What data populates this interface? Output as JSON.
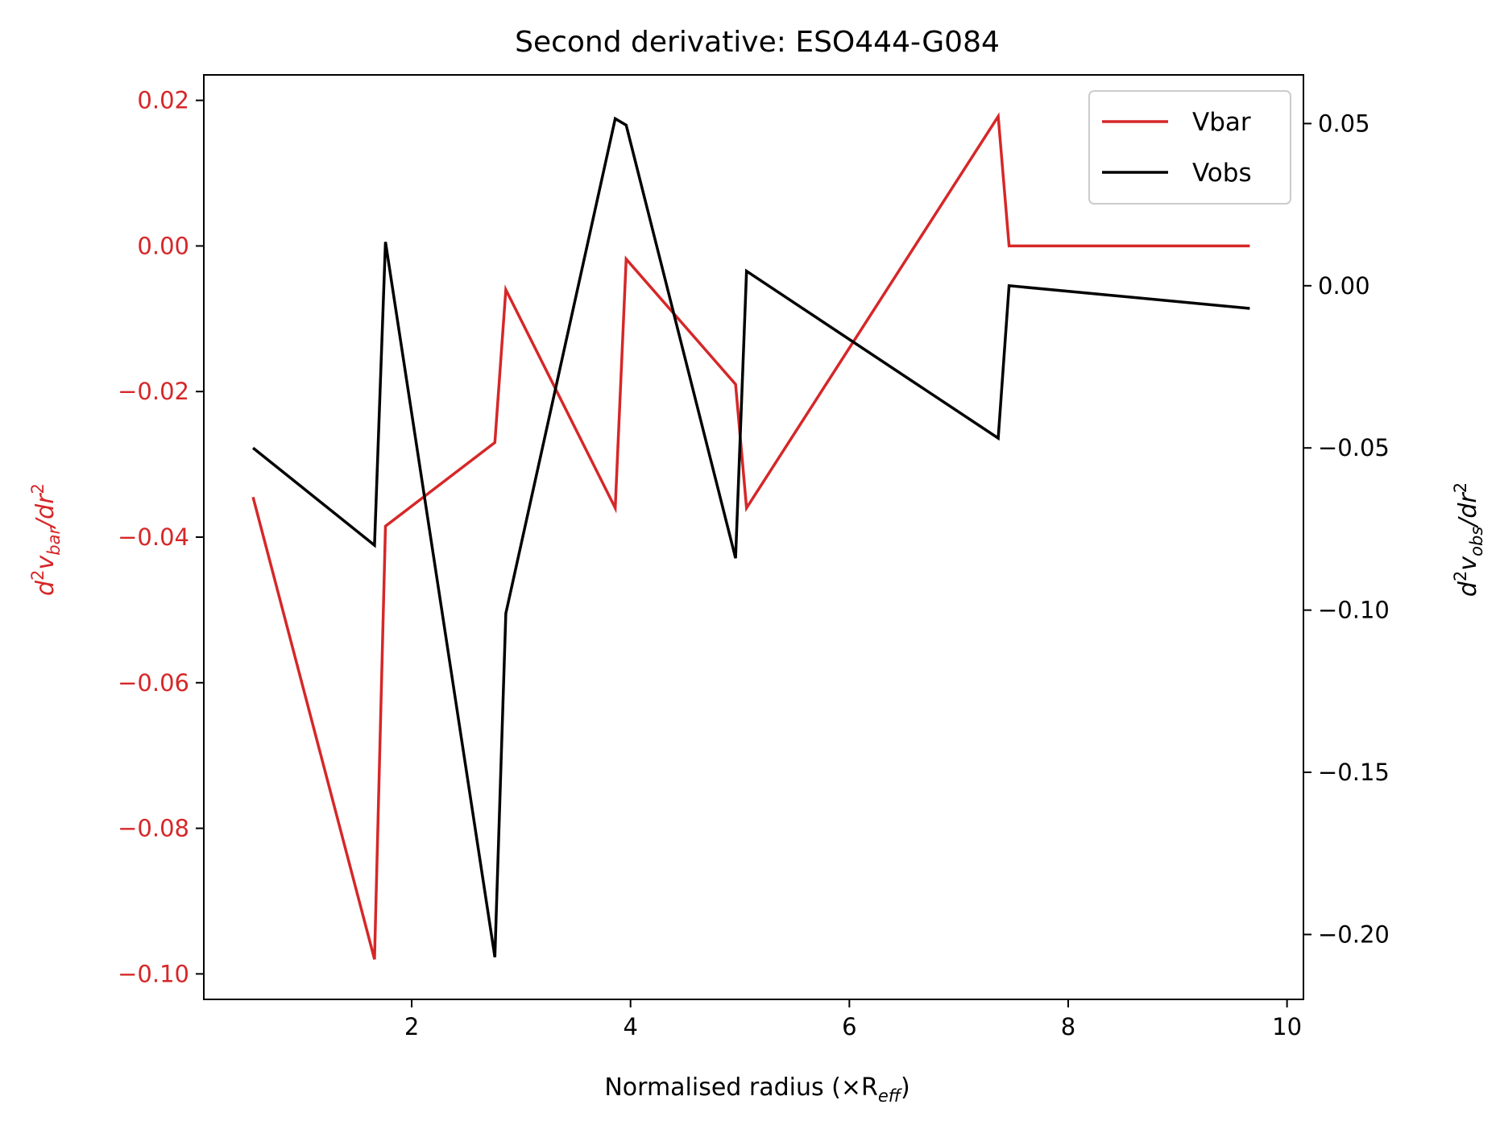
{
  "chart_data": {
    "type": "line",
    "title": "Second derivative: ESO444-G084",
    "xlabel": "Normalised radius (×R",
    "xlabel_sub": "eff",
    "xlabel_close": ")",
    "ylabel_left": {
      "pre": "d",
      "sup1": "2",
      "v": "v",
      "sub": "bar",
      "mid": "/dr",
      "sup2": "2"
    },
    "ylabel_right": {
      "pre": "d",
      "sup1": "2",
      "v": "v",
      "sub": "obs",
      "mid": "/dr",
      "sup2": "2"
    },
    "xlim": [
      0.1,
      10.15
    ],
    "ylim_left": [
      -0.1035,
      0.0235
    ],
    "ylim_right": [
      -0.22,
      0.065
    ],
    "xticks": [
      2,
      4,
      6,
      8,
      10
    ],
    "xtick_labels": [
      "2",
      "4",
      "6",
      "8",
      "10"
    ],
    "yticks_left": [
      0.02,
      0.0,
      -0.02,
      -0.04,
      -0.06,
      -0.08,
      -0.1
    ],
    "ytick_labels_left": [
      "0.02",
      "0.00",
      "−0.02",
      "−0.04",
      "−0.06",
      "−0.08",
      "−0.10"
    ],
    "yticks_right": [
      0.05,
      0.0,
      -0.05,
      -0.1,
      -0.15,
      -0.2
    ],
    "ytick_labels_right": [
      "0.05",
      "0.00",
      "−0.05",
      "−0.10",
      "−0.15",
      "−0.20"
    ],
    "legend_placement": "top-right",
    "grid": false,
    "series": [
      {
        "name": "Vbar",
        "axis": "left",
        "color": "#d62728",
        "x": [
          0.55,
          1.66,
          1.76,
          2.76,
          2.86,
          3.86,
          3.96,
          4.96,
          5.06,
          7.36,
          7.46,
          9.66
        ],
        "y": [
          -0.0345,
          -0.098,
          -0.0385,
          -0.027,
          -0.006,
          -0.036,
          -0.0018,
          -0.019,
          -0.036,
          0.0178,
          0.0,
          0.0
        ]
      },
      {
        "name": "Vobs",
        "axis": "right",
        "color": "#000000",
        "x": [
          0.55,
          1.66,
          1.76,
          2.76,
          2.86,
          3.86,
          3.96,
          4.96,
          5.06,
          7.36,
          7.46,
          9.66
        ],
        "y": [
          -0.05,
          -0.08,
          0.0135,
          -0.207,
          -0.101,
          0.0515,
          0.0495,
          -0.084,
          0.0045,
          -0.047,
          0.0,
          -0.007
        ]
      }
    ]
  },
  "colors": {
    "left_axis": "#d62728",
    "right_axis": "#000000"
  }
}
